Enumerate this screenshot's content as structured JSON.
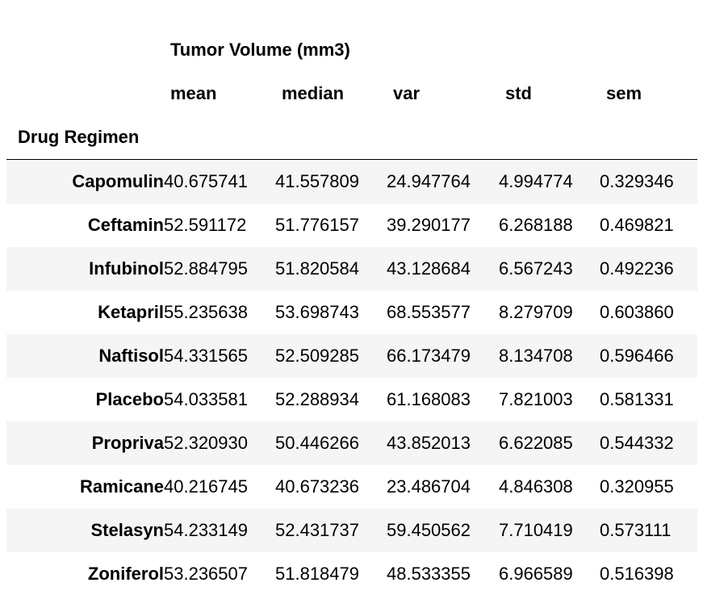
{
  "chart_data": {
    "type": "table",
    "column_group": "Tumor Volume (mm3)",
    "columns": [
      "mean",
      "median",
      "var",
      "std",
      "sem"
    ],
    "index_name": "Drug Regimen",
    "rows": [
      {
        "label": "Capomulin",
        "values": [
          "40.675741",
          "41.557809",
          "24.947764",
          "4.994774",
          "0.329346"
        ]
      },
      {
        "label": "Ceftamin",
        "values": [
          "52.591172",
          "51.776157",
          "39.290177",
          "6.268188",
          "0.469821"
        ]
      },
      {
        "label": "Infubinol",
        "values": [
          "52.884795",
          "51.820584",
          "43.128684",
          "6.567243",
          "0.492236"
        ]
      },
      {
        "label": "Ketapril",
        "values": [
          "55.235638",
          "53.698743",
          "68.553577",
          "8.279709",
          "0.603860"
        ]
      },
      {
        "label": "Naftisol",
        "values": [
          "54.331565",
          "52.509285",
          "66.173479",
          "8.134708",
          "0.596466"
        ]
      },
      {
        "label": "Placebo",
        "values": [
          "54.033581",
          "52.288934",
          "61.168083",
          "7.821003",
          "0.581331"
        ]
      },
      {
        "label": "Propriva",
        "values": [
          "52.320930",
          "50.446266",
          "43.852013",
          "6.622085",
          "0.544332"
        ]
      },
      {
        "label": "Ramicane",
        "values": [
          "40.216745",
          "40.673236",
          "23.486704",
          "4.846308",
          "0.320955"
        ]
      },
      {
        "label": "Stelasyn",
        "values": [
          "54.233149",
          "52.431737",
          "59.450562",
          "7.710419",
          "0.573111"
        ]
      },
      {
        "label": "Zoniferol",
        "values": [
          "53.236507",
          "51.818479",
          "48.533355",
          "6.966589",
          "0.516398"
        ]
      }
    ]
  }
}
